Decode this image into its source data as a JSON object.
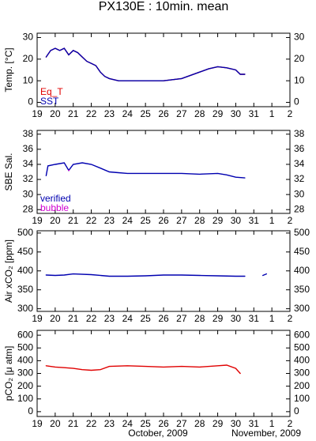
{
  "title": "PX130E : 10min. mean",
  "footer": [
    "October, 2009",
    "November, 2009"
  ],
  "chart_data": [
    {
      "type": "line",
      "ylabel": "Temp. [°C]",
      "xlim": [
        19,
        33
      ],
      "ylim": [
        -2,
        32
      ],
      "xticks": [
        19,
        20,
        21,
        22,
        23,
        24,
        25,
        26,
        27,
        28,
        29,
        30,
        31,
        {
          "value": 32,
          "label": "1"
        },
        {
          "value": 33,
          "label": "2"
        }
      ],
      "yticks": [
        0,
        10,
        20,
        30
      ],
      "x": [
        19.5,
        19.75,
        20,
        20.25,
        20.5,
        20.75,
        21,
        21.25,
        21.5,
        21.75,
        22,
        22.25,
        22.5,
        22.75,
        23,
        23.5,
        24,
        25,
        26,
        26.5,
        27,
        27.5,
        28,
        28.5,
        29,
        29.5,
        30,
        30.25,
        30.5
      ],
      "series": [
        {
          "name": "Eq_T",
          "color": "#e00000",
          "values": [
            21,
            24,
            25,
            24,
            25,
            22,
            24,
            23,
            21,
            19,
            18,
            17,
            14,
            12,
            11,
            10,
            10,
            10,
            10,
            10.5,
            11,
            12.5,
            14,
            15.5,
            16.5,
            16,
            15,
            13,
            13
          ]
        },
        {
          "name": "SST",
          "color": "#0000b0",
          "values": [
            21,
            24,
            25,
            24,
            25,
            22,
            24,
            23,
            21,
            19,
            18,
            17,
            14,
            12,
            11,
            10,
            10,
            10,
            10,
            10.5,
            11,
            12.5,
            14,
            15.5,
            16.5,
            16,
            15,
            13,
            13
          ]
        }
      ]
    },
    {
      "type": "line",
      "ylabel": "SBE Sal.",
      "xlim": [
        19,
        33
      ],
      "ylim": [
        27.5,
        38.5
      ],
      "xticks": [
        19,
        20,
        21,
        22,
        23,
        24,
        25,
        26,
        27,
        28,
        29,
        30,
        31,
        {
          "value": 32,
          "label": "1"
        },
        {
          "value": 33,
          "label": "2"
        }
      ],
      "yticks": [
        28,
        30,
        32,
        34,
        36,
        38
      ],
      "x": [
        19.5,
        19.6,
        20,
        20.5,
        20.75,
        21,
        21.5,
        22,
        22.5,
        23,
        23.5,
        24,
        25,
        26,
        27,
        28,
        29,
        29.5,
        30,
        30.5
      ],
      "series": [
        {
          "name": "verified",
          "color": "#0000b0",
          "values": [
            32.5,
            33.8,
            34,
            34.2,
            33.2,
            34,
            34.2,
            34,
            33.5,
            33,
            32.9,
            32.8,
            32.8,
            32.8,
            32.8,
            32.7,
            32.8,
            32.6,
            32.3,
            32.2
          ]
        },
        {
          "name": "bubble",
          "color": "#d000d0",
          "values": [
            null,
            null,
            null,
            null,
            33.2,
            null,
            null,
            null,
            null,
            null,
            null,
            null,
            null,
            null,
            null,
            null,
            null,
            null,
            null,
            null
          ]
        }
      ]
    },
    {
      "type": "line",
      "ylabel": "Air xCO₂ [ppm]",
      "xlim": [
        19,
        33
      ],
      "ylim": [
        293,
        506
      ],
      "xticks": [
        19,
        20,
        21,
        22,
        23,
        24,
        25,
        26,
        27,
        28,
        29,
        30,
        31,
        {
          "value": 32,
          "label": "1"
        },
        {
          "value": 33,
          "label": "2"
        }
      ],
      "yticks": [
        300,
        350,
        400,
        450,
        500
      ],
      "x": [
        19.5,
        20,
        20.5,
        21,
        22,
        23,
        24,
        25,
        26,
        27,
        28,
        29,
        30,
        30.5,
        31,
        31.5,
        31.7
      ],
      "series": [
        {
          "color": "#0000b0",
          "values": [
            389,
            388,
            389,
            392,
            390,
            386,
            386,
            387,
            389,
            389,
            388,
            387,
            386,
            386,
            null,
            388,
            392
          ]
        }
      ]
    },
    {
      "type": "line",
      "ylabel": "pCO₂ [μ atm]",
      "xlim": [
        19,
        33
      ],
      "ylim": [
        -38,
        638
      ],
      "xticks": [
        19,
        20,
        21,
        22,
        23,
        24,
        25,
        26,
        27,
        28,
        29,
        30,
        31,
        {
          "value": 32,
          "label": "1"
        },
        {
          "value": 33,
          "label": "2"
        }
      ],
      "yticks": [
        0,
        100,
        200,
        300,
        400,
        500,
        600
      ],
      "x": [
        19.5,
        20,
        20.5,
        21,
        21.5,
        22,
        22.5,
        23,
        24,
        25,
        26,
        27,
        28,
        29,
        29.5,
        30,
        30.25
      ],
      "series": [
        {
          "color": "#e00000",
          "values": [
            360,
            350,
            345,
            340,
            330,
            325,
            330,
            355,
            360,
            355,
            350,
            355,
            350,
            360,
            365,
            340,
            300
          ]
        }
      ]
    }
  ]
}
